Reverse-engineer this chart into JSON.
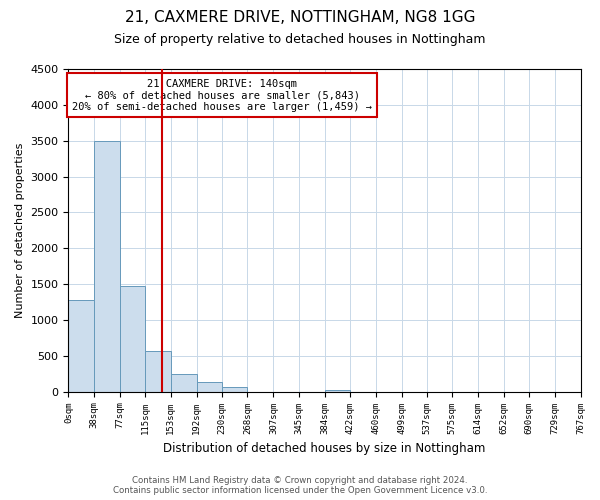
{
  "title": "21, CAXMERE DRIVE, NOTTINGHAM, NG8 1GG",
  "subtitle": "Size of property relative to detached houses in Nottingham",
  "bar_heights": [
    1280,
    3500,
    1480,
    570,
    240,
    130,
    70,
    0,
    0,
    0,
    20,
    0,
    0,
    0,
    0,
    0,
    0,
    0,
    0,
    0
  ],
  "bin_edges": [
    0,
    38,
    77,
    115,
    153,
    192,
    230,
    268,
    307,
    345,
    384,
    422,
    460,
    499,
    537,
    575,
    614,
    652,
    690,
    729,
    767
  ],
  "bin_labels": [
    "0sqm",
    "38sqm",
    "77sqm",
    "115sqm",
    "153sqm",
    "192sqm",
    "230sqm",
    "268sqm",
    "307sqm",
    "345sqm",
    "384sqm",
    "422sqm",
    "460sqm",
    "499sqm",
    "537sqm",
    "575sqm",
    "614sqm",
    "652sqm",
    "690sqm",
    "729sqm",
    "767sqm"
  ],
  "bar_color": "#ccdded",
  "bar_edge_color": "#6699bb",
  "ylabel": "Number of detached properties",
  "xlabel": "Distribution of detached houses by size in Nottingham",
  "ylim": [
    0,
    4500
  ],
  "yticks": [
    0,
    500,
    1000,
    1500,
    2000,
    2500,
    3000,
    3500,
    4000,
    4500
  ],
  "property_line_x": 140,
  "property_line_color": "#cc0000",
  "annotation_title": "21 CAXMERE DRIVE: 140sqm",
  "annotation_line1": "← 80% of detached houses are smaller (5,843)",
  "annotation_line2": "20% of semi-detached houses are larger (1,459) →",
  "annotation_box_color": "#cc0000",
  "footer_line1": "Contains HM Land Registry data © Crown copyright and database right 2024.",
  "footer_line2": "Contains public sector information licensed under the Open Government Licence v3.0.",
  "bg_color": "#ffffff",
  "grid_color": "#c8d8e8"
}
